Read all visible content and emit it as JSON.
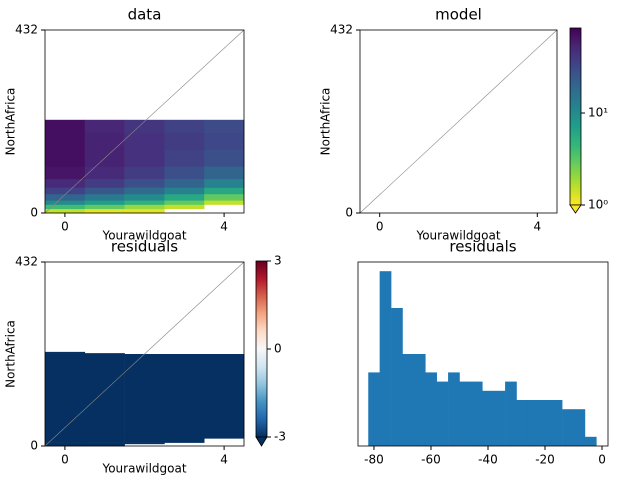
{
  "chart_data": [
    {
      "type": "heatmap",
      "title": "data",
      "xlabel": "Yourawildgoat",
      "ylabel": "NorthAfrica",
      "x": [
        0,
        1,
        2,
        3,
        4
      ],
      "xlim": [
        -0.5,
        4.5
      ],
      "xticks": [
        0,
        4
      ],
      "ylim": [
        0,
        432
      ],
      "yticks": [
        0,
        432
      ],
      "y_edges": [
        0,
        10,
        20,
        30,
        45,
        60,
        80,
        110,
        150,
        190,
        220
      ],
      "values": [
        [
          1.5,
          4,
          10,
          20,
          35,
          50,
          65,
          70,
          70,
          70
        ],
        [
          1.2,
          3,
          7,
          14,
          25,
          38,
          50,
          55,
          55,
          52
        ],
        [
          1.2,
          2,
          5,
          10,
          18,
          28,
          38,
          45,
          45,
          42
        ],
        [
          null,
          1.5,
          3,
          6,
          12,
          20,
          28,
          35,
          38,
          35
        ],
        [
          null,
          null,
          1.5,
          3,
          6,
          12,
          20,
          28,
          32,
          30
        ]
      ]
    },
    {
      "type": "heatmap",
      "title": "model",
      "xlabel": "Yourawildgoat",
      "ylabel": "NorthAfrica",
      "x": [
        0,
        1,
        2,
        3,
        4
      ],
      "xlim": [
        -0.5,
        4.5
      ],
      "xticks": [
        0,
        4
      ],
      "ylim": [
        0,
        432
      ],
      "yticks": [
        0,
        432
      ],
      "colorbar": {
        "cmap": "viridis_r",
        "scale": "log",
        "lim": [
          1,
          84
        ],
        "extend": "min",
        "ticks": [
          {
            "value": 1,
            "label": "10⁰"
          },
          {
            "value": 10,
            "label": "10¹"
          }
        ]
      }
    },
    {
      "type": "heatmap",
      "title": "residuals",
      "xlabel": "Yourawildgoat",
      "ylabel": "NorthAfrica",
      "x": [
        0,
        1,
        2,
        3,
        4
      ],
      "xlim": [
        -0.5,
        4.5
      ],
      "xticks": [
        0,
        4
      ],
      "ylim": [
        0,
        432
      ],
      "yticks": [
        0,
        432
      ],
      "y_edges": [
        0,
        5,
        8,
        18,
        216,
        218,
        221
      ],
      "values": [
        [
          -3,
          -3,
          -3,
          -3,
          -3,
          -3
        ],
        [
          -3,
          -3,
          -3,
          -3,
          -3,
          null
        ],
        [
          null,
          -3,
          -3,
          -3,
          null,
          null
        ],
        [
          null,
          null,
          -3,
          -3,
          null,
          null
        ],
        [
          null,
          null,
          null,
          -3,
          null,
          null
        ]
      ],
      "colorbar": {
        "cmap": "RdBu_r",
        "scale": "linear",
        "lim": [
          -3,
          3
        ],
        "extend": "min",
        "ticks": [
          -3,
          0,
          3
        ]
      }
    },
    {
      "type": "histogram",
      "title": "residuals",
      "color": "#1f77b4",
      "bins": [
        -82,
        -78,
        -74,
        -70,
        -66,
        -62,
        -58,
        -54,
        -50,
        -46,
        -42,
        -38,
        -34,
        -30,
        -26,
        -22,
        -18,
        -14,
        -10,
        -6,
        -2
      ],
      "counts": [
        8,
        19,
        15,
        10,
        10,
        8,
        7,
        8,
        7,
        7,
        6,
        6,
        7,
        5,
        5,
        5,
        5,
        4,
        4,
        1
      ],
      "xlim": [
        -85.6,
        2.1
      ],
      "xticks": [
        -80,
        -60,
        -40,
        -20,
        0
      ],
      "ylim": [
        0,
        20
      ]
    }
  ]
}
